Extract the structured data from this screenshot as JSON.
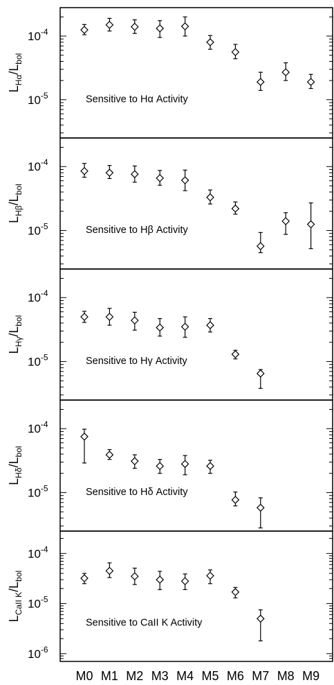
{
  "chart_data": {
    "type": "scatter",
    "yscale": "log",
    "categories": [
      "M0",
      "M1",
      "M2",
      "M3",
      "M4",
      "M5",
      "M6",
      "M7",
      "M8",
      "M9"
    ],
    "panels": [
      {
        "ylabel": {
          "base": "L",
          "sub": "Hα",
          "mid": "/L",
          "sub2": "bol"
        },
        "annotation": "Sensitive to Hα Activity",
        "ylim": [
          2.5e-06,
          0.00028
        ],
        "yticks": [
          {
            "value": 0.0001,
            "mant": "10",
            "exp": "-4"
          },
          {
            "value": 1e-05,
            "mant": "10",
            "exp": "-5"
          }
        ],
        "points": [
          {
            "x": "M0",
            "y": 0.000125,
            "lo": 0.000105,
            "hi": 0.000152
          },
          {
            "x": "M1",
            "y": 0.00015,
            "lo": 0.00012,
            "hi": 0.00019
          },
          {
            "x": "M2",
            "y": 0.00014,
            "lo": 0.00011,
            "hi": 0.00018
          },
          {
            "x": "M3",
            "y": 0.000132,
            "lo": 9.5e-05,
            "hi": 0.000175
          },
          {
            "x": "M4",
            "y": 0.000142,
            "lo": 0.0001,
            "hi": 0.0002
          },
          {
            "x": "M5",
            "y": 8e-05,
            "lo": 6.2e-05,
            "hi": 0.000102
          },
          {
            "x": "M6",
            "y": 5.6e-05,
            "lo": 4.4e-05,
            "hi": 7.4e-05
          },
          {
            "x": "M7",
            "y": 1.9e-05,
            "lo": 1.4e-05,
            "hi": 2.7e-05
          },
          {
            "x": "M8",
            "y": 2.7e-05,
            "lo": 2e-05,
            "hi": 3.8e-05
          },
          {
            "x": "M9",
            "y": 1.9e-05,
            "lo": 1.5e-05,
            "hi": 2.5e-05
          }
        ]
      },
      {
        "ylabel": {
          "base": "L",
          "sub": "Hβ",
          "mid": "/L",
          "sub2": "bol"
        },
        "annotation": "Sensitive to Hβ Activity",
        "ylim": [
          2.5e-06,
          0.00028
        ],
        "yticks": [
          {
            "value": 0.0001,
            "mant": "10",
            "exp": "-4"
          },
          {
            "value": 1e-05,
            "mant": "10",
            "exp": "-5"
          }
        ],
        "points": [
          {
            "x": "M0",
            "y": 8.5e-05,
            "lo": 6.8e-05,
            "hi": 0.000112
          },
          {
            "x": "M1",
            "y": 8e-05,
            "lo": 6.5e-05,
            "hi": 0.000104
          },
          {
            "x": "M2",
            "y": 7.6e-05,
            "lo": 5.7e-05,
            "hi": 0.000102
          },
          {
            "x": "M3",
            "y": 6.6e-05,
            "lo": 5.1e-05,
            "hi": 8.7e-05
          },
          {
            "x": "M4",
            "y": 6.1e-05,
            "lo": 4.2e-05,
            "hi": 8.8e-05
          },
          {
            "x": "M5",
            "y": 3.3e-05,
            "lo": 2.6e-05,
            "hi": 4.3e-05
          },
          {
            "x": "M6",
            "y": 2.2e-05,
            "lo": 1.8e-05,
            "hi": 2.8e-05
          },
          {
            "x": "M7",
            "y": 5.7e-06,
            "lo": 4.5e-06,
            "hi": 9.3e-06
          },
          {
            "x": "M8",
            "y": 1.4e-05,
            "lo": 8.7e-06,
            "hi": 1.9e-05
          },
          {
            "x": "M9",
            "y": 1.25e-05,
            "lo": 5.2e-06,
            "hi": 2.7e-05
          }
        ]
      },
      {
        "ylabel": {
          "base": "L",
          "sub": "Hγ",
          "mid": "/L",
          "sub2": "bol"
        },
        "annotation": "Sensitive to Hγ Activity",
        "ylim": [
          2.5e-06,
          0.00028
        ],
        "yticks": [
          {
            "value": 0.0001,
            "mant": "10",
            "exp": "-4"
          },
          {
            "value": 1e-05,
            "mant": "10",
            "exp": "-5"
          }
        ],
        "points": [
          {
            "x": "M0",
            "y": 5e-05,
            "lo": 4.1e-05,
            "hi": 6.1e-05
          },
          {
            "x": "M1",
            "y": 5e-05,
            "lo": 3.7e-05,
            "hi": 6.8e-05
          },
          {
            "x": "M2",
            "y": 4.4e-05,
            "lo": 3.1e-05,
            "hi": 5.9e-05
          },
          {
            "x": "M3",
            "y": 3.4e-05,
            "lo": 2.5e-05,
            "hi": 4.7e-05
          },
          {
            "x": "M4",
            "y": 3.5e-05,
            "lo": 2.4e-05,
            "hi": 5e-05
          },
          {
            "x": "M5",
            "y": 3.7e-05,
            "lo": 2.9e-05,
            "hi": 4.7e-05
          },
          {
            "x": "M6",
            "y": 1.3e-05,
            "lo": 1.1e-05,
            "hi": 1.5e-05
          },
          {
            "x": "M7",
            "y": 6.5e-06,
            "lo": 3.8e-06,
            "hi": 7.5e-06
          }
        ]
      },
      {
        "ylabel": {
          "base": "L",
          "sub": "Hδ",
          "mid": "/L",
          "sub2": "bol"
        },
        "annotation": "Sensitive to Hδ Activity",
        "ylim": [
          2.5e-06,
          0.00028
        ],
        "yticks": [
          {
            "value": 0.0001,
            "mant": "10",
            "exp": "-4"
          },
          {
            "value": 1e-05,
            "mant": "10",
            "exp": "-5"
          }
        ],
        "points": [
          {
            "x": "M0",
            "y": 7.5e-05,
            "lo": 2.9e-05,
            "hi": 9.8e-05
          },
          {
            "x": "M1",
            "y": 3.9e-05,
            "lo": 3.3e-05,
            "hi": 4.7e-05
          },
          {
            "x": "M2",
            "y": 3.1e-05,
            "lo": 2.4e-05,
            "hi": 3.9e-05
          },
          {
            "x": "M3",
            "y": 2.6e-05,
            "lo": 2e-05,
            "hi": 3.3e-05
          },
          {
            "x": "M4",
            "y": 2.8e-05,
            "lo": 1.9e-05,
            "hi": 3.8e-05
          },
          {
            "x": "M5",
            "y": 2.6e-05,
            "lo": 2e-05,
            "hi": 3.2e-05
          },
          {
            "x": "M6",
            "y": 7.7e-06,
            "lo": 6.2e-06,
            "hi": 1.02e-05
          },
          {
            "x": "M7",
            "y": 5.8e-06,
            "lo": 2.8e-06,
            "hi": 8.3e-06
          }
        ]
      },
      {
        "ylabel": {
          "base": "L",
          "sub": "CaII K",
          "mid": "/L",
          "sub2": "bol"
        },
        "annotation": "Sensitive to CaII K Activity",
        "ylim": [
          7e-07,
          0.00028
        ],
        "yticks": [
          {
            "value": 0.0001,
            "mant": "10",
            "exp": "-4"
          },
          {
            "value": 1e-05,
            "mant": "10",
            "exp": "-5"
          },
          {
            "value": 1e-06,
            "mant": "10",
            "exp": "-6"
          }
        ],
        "points": [
          {
            "x": "M0",
            "y": 3.2e-05,
            "lo": 2.5e-05,
            "hi": 4e-05
          },
          {
            "x": "M1",
            "y": 4.5e-05,
            "lo": 3.3e-05,
            "hi": 6.5e-05
          },
          {
            "x": "M2",
            "y": 3.5e-05,
            "lo": 2.4e-05,
            "hi": 5.1e-05
          },
          {
            "x": "M3",
            "y": 3e-05,
            "lo": 1.9e-05,
            "hi": 4.4e-05
          },
          {
            "x": "M4",
            "y": 2.8e-05,
            "lo": 1.9e-05,
            "hi": 3.9e-05
          },
          {
            "x": "M5",
            "y": 3.6e-05,
            "lo": 2.5e-05,
            "hi": 4.7e-05
          },
          {
            "x": "M6",
            "y": 1.7e-05,
            "lo": 1.3e-05,
            "hi": 2.1e-05
          },
          {
            "x": "M7",
            "y": 5e-06,
            "lo": 1.8e-06,
            "hi": 7.5e-06
          }
        ]
      }
    ]
  }
}
